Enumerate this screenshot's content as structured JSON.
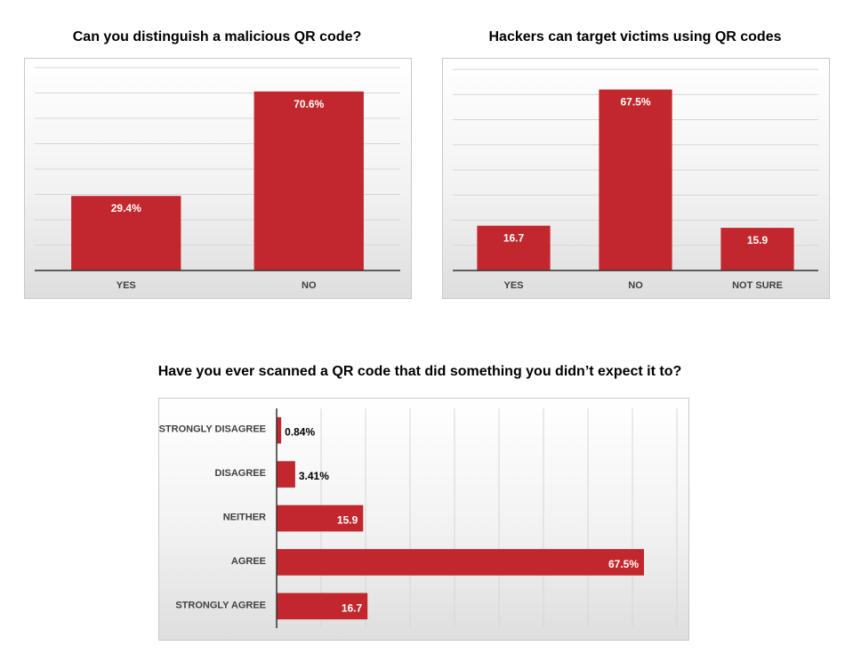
{
  "chart_data": [
    {
      "type": "bar",
      "title": "Can you distinguish a malicious QR code?",
      "categories": [
        "YES",
        "NO"
      ],
      "values": [
        29.4,
        70.6
      ],
      "value_labels": [
        "29.4%",
        "70.6%"
      ],
      "ylim": [
        0,
        80
      ],
      "grid": true,
      "bar_color": "#c1272d"
    },
    {
      "type": "bar",
      "title": "Hackers can target victims using QR codes",
      "categories": [
        "YES",
        "NO",
        "NOT SURE"
      ],
      "values": [
        16.7,
        67.5,
        15.9
      ],
      "value_labels": [
        "16.7",
        "67.5%",
        "15.9"
      ],
      "ylim": [
        0,
        75
      ],
      "grid": true,
      "bar_color": "#c1272d"
    },
    {
      "type": "bar",
      "orientation": "horizontal",
      "title": "Have you ever scanned a QR code that did something you didn’t expect it to?",
      "categories": [
        "STRONGLY DISAGREE",
        "DISAGREE",
        "NEITHER",
        "AGREE",
        "STRONGLY AGREE"
      ],
      "values": [
        0.84,
        3.41,
        15.9,
        67.5,
        16.7
      ],
      "value_labels": [
        "0.84%",
        "3.41%",
        "15.9",
        "67.5%",
        "16.7"
      ],
      "grid": true,
      "bar_color": "#c1272d"
    }
  ]
}
